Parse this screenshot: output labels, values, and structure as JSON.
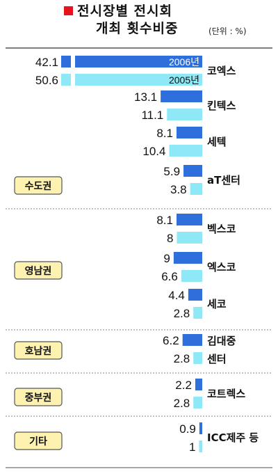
{
  "chart_data": {
    "type": "bar",
    "title_line1": "전시장별 전시회",
    "title_line2": "개최 횟수비중",
    "unit": "(단위 : %)",
    "xlim": [
      0,
      100
    ],
    "series": [
      {
        "name": "2006년",
        "color": "#2f6fdc"
      },
      {
        "name": "2005년",
        "color": "#8ee8f6"
      }
    ],
    "venues": [
      {
        "name": "코엑스",
        "v2006": 42.1,
        "v2005": 50.6,
        "value_label_2006": "42.1",
        "value_label_2005": "50.6"
      },
      {
        "name": "킨텍스",
        "v2006": 13.1,
        "v2005": 11.1,
        "value_label_2006": "13.1",
        "value_label_2005": "11.1"
      },
      {
        "name": "세텍",
        "v2006": 8.1,
        "v2005": 10.4,
        "value_label_2006": "8.1",
        "value_label_2005": "10.4"
      },
      {
        "name": "aT센터",
        "v2006": 5.9,
        "v2005": 3.8,
        "value_label_2006": "5.9",
        "value_label_2005": "3.8"
      },
      {
        "name": "벡스코",
        "v2006": 8.1,
        "v2005": 8,
        "value_label_2006": "8.1",
        "value_label_2005": "8"
      },
      {
        "name": "엑스코",
        "v2006": 9,
        "v2005": 6.6,
        "value_label_2006": "9",
        "value_label_2005": "6.6"
      },
      {
        "name": "세코",
        "v2006": 4.4,
        "v2005": 2.8,
        "value_label_2006": "4.4",
        "value_label_2005": "2.8"
      },
      {
        "name": "김대중 센터",
        "name_lines": [
          "김대중",
          "센터"
        ],
        "v2006": 6.2,
        "v2005": 2.8,
        "value_label_2006": "6.2",
        "value_label_2005": "2.8"
      },
      {
        "name": "코트렉스",
        "v2006": 2.2,
        "v2005": 2.8,
        "value_label_2006": "2.2",
        "value_label_2005": "2.8"
      },
      {
        "name": "ICC제주 등",
        "v2006": 0.9,
        "v2005": 1,
        "value_label_2006": "0.9",
        "value_label_2005": "1"
      }
    ],
    "regions": [
      {
        "name": "수도권",
        "venues": [
          0,
          1,
          2,
          3
        ]
      },
      {
        "name": "영남권",
        "venues": [
          4,
          5,
          6
        ]
      },
      {
        "name": "호남권",
        "venues": [
          7
        ]
      },
      {
        "name": "중부권",
        "venues": [
          8
        ]
      },
      {
        "name": "기타",
        "venues": [
          9
        ]
      }
    ],
    "region_box_color": "#fdf2b0"
  }
}
